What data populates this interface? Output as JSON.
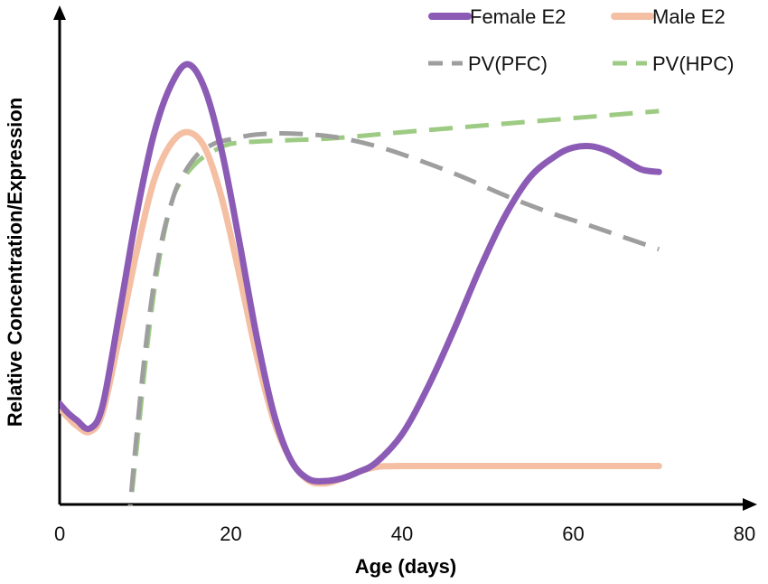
{
  "chart_data": {
    "type": "line",
    "title": "",
    "xlabel": "Age (days)",
    "ylabel": "Relative Concentration/Expression",
    "xlim": [
      0,
      80
    ],
    "ylim": [
      0,
      10
    ],
    "x_ticks": [
      "0",
      "20",
      "40",
      "60",
      "80"
    ],
    "y_ticks": [],
    "grid": false,
    "legend_position": "top-right",
    "series": [
      {
        "name": "Female E2",
        "color": "#8B5BB5",
        "style": "solid",
        "x": [
          0,
          1,
          2,
          3.5,
          5,
          7,
          9,
          11,
          13,
          15,
          17,
          19,
          21,
          23,
          25,
          27,
          29,
          31,
          33,
          35,
          37,
          40,
          43,
          46,
          49,
          52,
          55,
          58,
          60,
          62,
          64,
          66,
          68,
          70
        ],
        "y": [
          2.15,
          1.95,
          1.8,
          1.62,
          2.1,
          4.1,
          6.2,
          7.9,
          8.95,
          9.4,
          8.85,
          7.5,
          5.6,
          3.6,
          1.95,
          0.95,
          0.55,
          0.5,
          0.56,
          0.7,
          0.9,
          1.5,
          2.5,
          3.7,
          5.0,
          6.15,
          7.0,
          7.45,
          7.62,
          7.65,
          7.55,
          7.35,
          7.15,
          7.1
        ]
      },
      {
        "name": "Male E2",
        "color": "#F4BFA3",
        "style": "solid",
        "x": [
          0,
          1,
          2,
          3.5,
          5,
          7,
          9,
          11,
          13,
          15,
          17,
          19,
          21,
          23,
          25,
          27,
          29,
          31,
          33,
          35,
          37,
          40,
          50,
          60,
          70
        ],
        "y": [
          2.05,
          1.85,
          1.68,
          1.55,
          1.95,
          3.6,
          5.4,
          6.9,
          7.7,
          7.95,
          7.6,
          6.5,
          4.9,
          3.2,
          1.8,
          0.95,
          0.52,
          0.45,
          0.55,
          0.7,
          0.8,
          0.82,
          0.82,
          0.82,
          0.82
        ]
      },
      {
        "name": "PV(PFC)",
        "color": "#9E9E9E",
        "style": "dashed",
        "x": [
          8,
          9,
          10,
          11,
          12,
          13,
          14,
          16,
          18,
          20,
          23,
          27,
          32,
          37,
          42,
          47,
          52,
          57,
          62,
          66,
          70
        ],
        "y": [
          -0.5,
          1.5,
          3.3,
          4.7,
          5.7,
          6.4,
          6.9,
          7.45,
          7.7,
          7.8,
          7.9,
          7.92,
          7.85,
          7.65,
          7.35,
          7.0,
          6.6,
          6.25,
          5.95,
          5.7,
          5.45
        ]
      },
      {
        "name": "PV(HPC)",
        "color": "#9ECB84",
        "style": "dashed",
        "x": [
          8,
          9,
          10,
          11,
          12,
          13,
          14,
          16,
          18,
          20,
          23,
          27,
          32,
          40,
          50,
          60,
          70
        ],
        "y": [
          -0.5,
          1.2,
          3.0,
          4.5,
          5.6,
          6.4,
          6.85,
          7.3,
          7.55,
          7.7,
          7.75,
          7.78,
          7.82,
          7.95,
          8.1,
          8.25,
          8.4
        ]
      }
    ]
  }
}
